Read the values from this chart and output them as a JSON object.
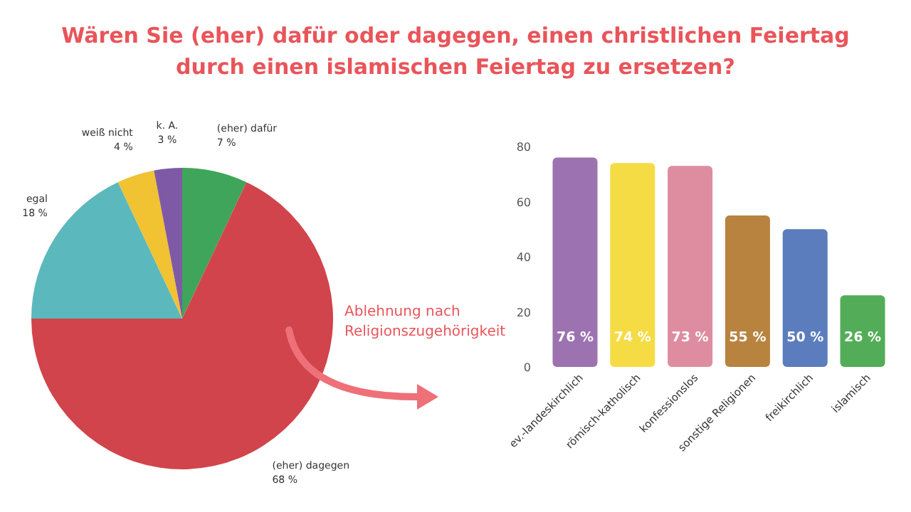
{
  "chart_data": [
    {
      "type": "pie",
      "title": "Wären Sie (eher) dafür oder dagegen, einen christlichen Feiertag\ndurch einen islamischen Feiertag zu ersetzen?",
      "categories": [
        "(eher) dafür",
        "(eher) dagegen",
        "egal",
        "weiß nicht",
        "k. A."
      ],
      "values": [
        7,
        68,
        18,
        4,
        3
      ],
      "colors": [
        "#3fa55a",
        "#d1444b",
        "#5bb8bd",
        "#f1c232",
        "#7e5aa6"
      ],
      "value_labels": [
        "7 %",
        "68 %",
        "18 %",
        "4 %",
        "3 %"
      ]
    },
    {
      "type": "bar",
      "categories": [
        "ev.-landeskirchlich",
        "römisch-katholisch",
        "konfessionslos",
        "sonstige Religionen",
        "freikirchlich",
        "islamisch"
      ],
      "values": [
        76,
        74,
        73,
        55,
        50,
        26
      ],
      "colors": [
        "#9c73b0",
        "#f5dc45",
        "#de8da0",
        "#b7833f",
        "#5b7dbd",
        "#53ad58"
      ],
      "value_labels": [
        "76 %",
        "74 %",
        "73 %",
        "55 %",
        "50 %",
        "26 %"
      ],
      "ylim": [
        0,
        80
      ],
      "yticks": [
        0,
        20,
        40,
        60,
        80
      ],
      "annotations": [
        "Ablehnung nach\nReligionszugehörigkeit"
      ]
    }
  ]
}
